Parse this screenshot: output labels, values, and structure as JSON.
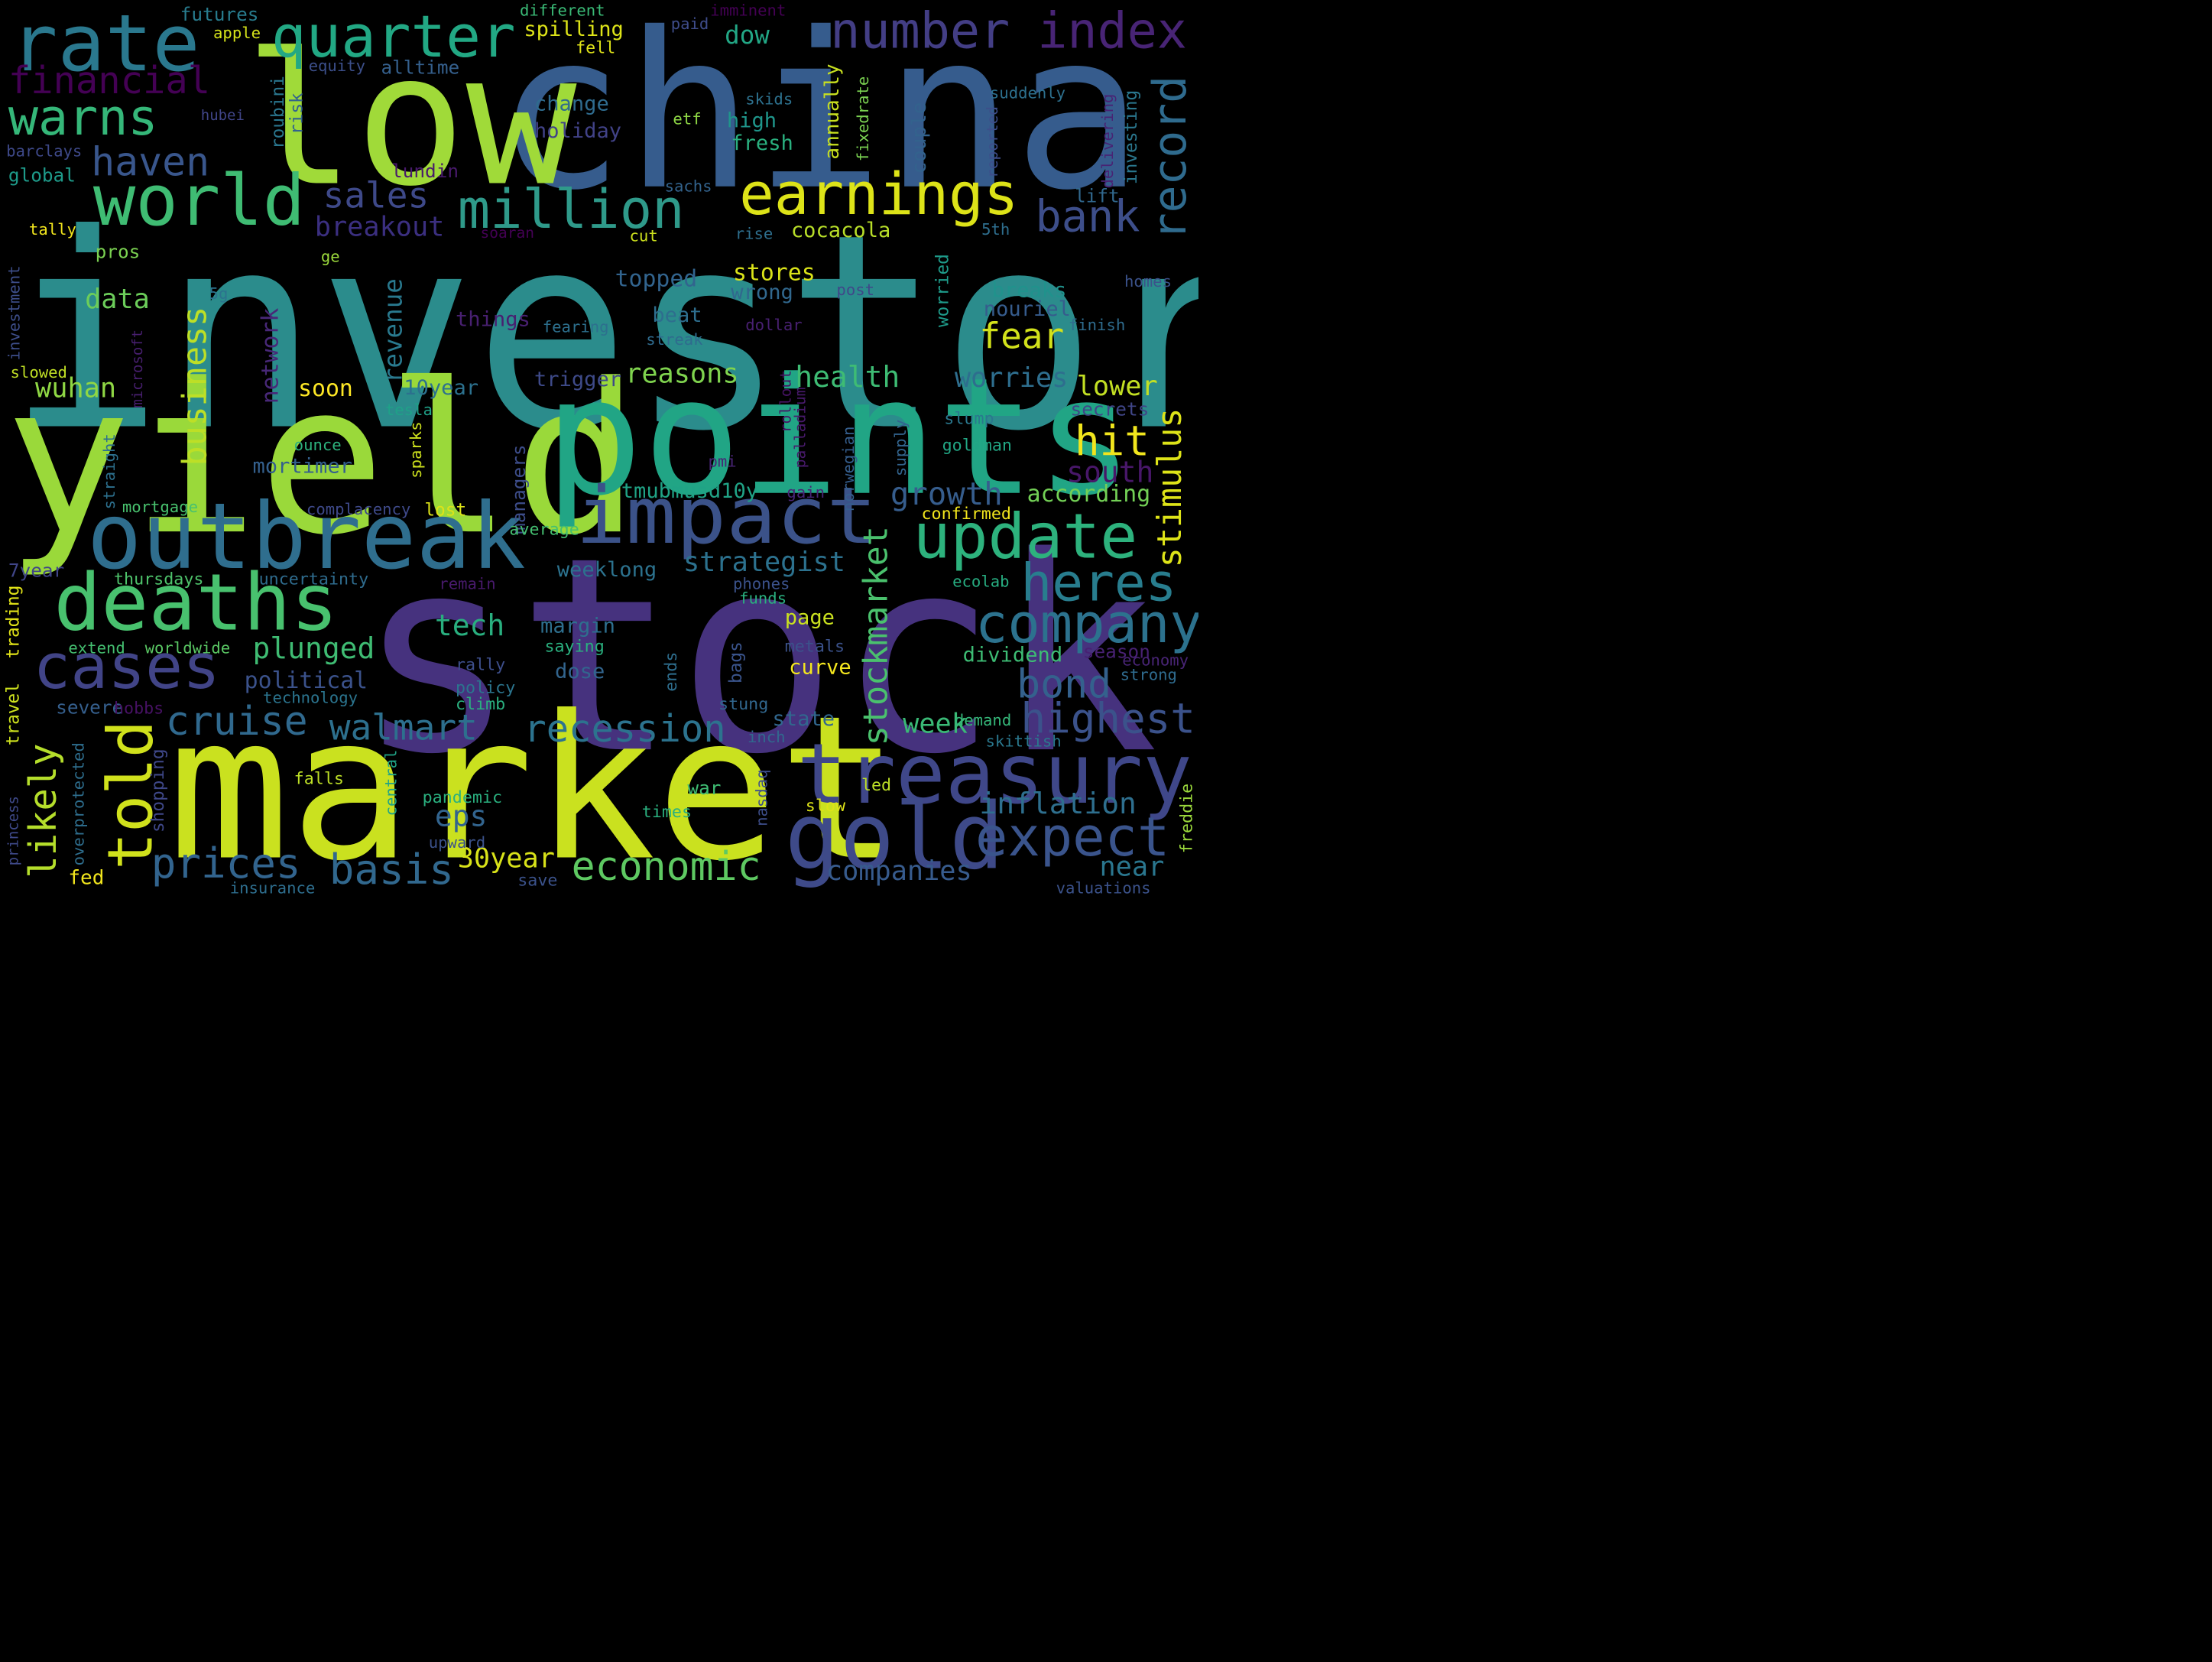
{
  "words": [
    {
      "text": "investors",
      "color": "#2b8c8c"
    },
    {
      "text": "stock",
      "color": "#46327e"
    },
    {
      "text": "china",
      "color": "#365c8d"
    },
    {
      "text": "market",
      "color": "#cae11f"
    },
    {
      "text": "yield",
      "color": "#9ad93a"
    },
    {
      "text": "points",
      "color": "#21a585"
    },
    {
      "text": "low",
      "color": "#a0da39"
    },
    {
      "text": "outbreak",
      "color": "#2f6e8e"
    },
    {
      "text": "impact",
      "color": "#3b5289"
    },
    {
      "text": "treasury",
      "color": "#3f4789"
    },
    {
      "text": "gold",
      "color": "#3e4a89"
    },
    {
      "text": "deaths",
      "color": "#48c16e"
    },
    {
      "text": "rate",
      "color": "#2a788e"
    },
    {
      "text": "world",
      "color": "#3fbc73"
    },
    {
      "text": "quarter",
      "color": "#22a884"
    },
    {
      "text": "update",
      "color": "#2db27d"
    },
    {
      "text": "cases",
      "color": "#414487"
    },
    {
      "text": "told",
      "color": "#d0e11c"
    },
    {
      "text": "earnings",
      "color": "#dde318"
    },
    {
      "text": "million",
      "color": "#2f9a8a"
    },
    {
      "text": "company",
      "color": "#2c728e"
    },
    {
      "text": "expect",
      "color": "#3a548c"
    },
    {
      "text": "number",
      "color": "#433e85"
    },
    {
      "text": "index",
      "color": "#482475"
    },
    {
      "text": "warns",
      "color": "#35b779"
    },
    {
      "text": "financial",
      "color": "#440154"
    },
    {
      "text": "haven",
      "color": "#39568c"
    },
    {
      "text": "record",
      "color": "#2f6b8e"
    },
    {
      "text": "heres",
      "color": "#287d8e"
    },
    {
      "text": "economic",
      "color": "#5ec962"
    },
    {
      "text": "prices",
      "color": "#32648e"
    },
    {
      "text": "basis",
      "color": "#31688e"
    },
    {
      "text": "recession",
      "color": "#2c738e"
    },
    {
      "text": "cruise",
      "color": "#30698e"
    },
    {
      "text": "walmart",
      "color": "#2d708e"
    },
    {
      "text": "highest",
      "color": "#3b528b"
    },
    {
      "text": "bond",
      "color": "#34618d"
    },
    {
      "text": "stimulus",
      "color": "#dde318"
    },
    {
      "text": "stockmarket",
      "color": "#4ac16d"
    },
    {
      "text": "bank",
      "color": "#3d4e8a"
    },
    {
      "text": "sales",
      "color": "#3e4989"
    },
    {
      "text": "likely",
      "color": "#b5de2b"
    },
    {
      "text": "business",
      "color": "#bddf26"
    },
    {
      "text": "fear",
      "color": "#d2e21b"
    },
    {
      "text": "hit",
      "color": "#f1e51d"
    },
    {
      "text": "breakout",
      "color": "#3b2f80"
    },
    {
      "text": "revenue",
      "color": "#29798e"
    },
    {
      "text": "network",
      "color": "#482878"
    },
    {
      "text": "growth",
      "color": "#365d8d"
    },
    {
      "text": "strategist",
      "color": "#2c718e"
    },
    {
      "text": "plunged",
      "color": "#3fbc73"
    },
    {
      "text": "inflation",
      "color": "#2e6f8e"
    },
    {
      "text": "companies",
      "color": "#375b8d"
    },
    {
      "text": "health",
      "color": "#3ebc74"
    },
    {
      "text": "worries",
      "color": "#2e6e8e"
    },
    {
      "text": "lower",
      "color": "#c2df23"
    },
    {
      "text": "south",
      "color": "#481769"
    },
    {
      "text": "wuhan",
      "color": "#8fd744"
    },
    {
      "text": "data",
      "color": "#6ccd5a"
    },
    {
      "text": "reasons",
      "color": "#7fd34e"
    },
    {
      "text": "tech",
      "color": "#29af7f"
    },
    {
      "text": "political",
      "color": "#3b528b"
    },
    {
      "text": "eps",
      "color": "#32648e"
    },
    {
      "text": "30year",
      "color": "#d8e219"
    },
    {
      "text": "near",
      "color": "#2a768e"
    },
    {
      "text": "week",
      "color": "#3aba76"
    },
    {
      "text": "state",
      "color": "#31678e"
    },
    {
      "text": "dividend",
      "color": "#3dbc74"
    },
    {
      "text": "according",
      "color": "#73d056"
    },
    {
      "text": "mortimer",
      "color": "#34608d"
    },
    {
      "text": "tmubmusd10y",
      "color": "#20a386"
    },
    {
      "text": "weeklong",
      "color": "#2c728e"
    },
    {
      "text": "cocacola",
      "color": "#b8de29"
    },
    {
      "text": "stores",
      "color": "#dae319"
    },
    {
      "text": "wrong",
      "color": "#31688e"
    },
    {
      "text": "topped",
      "color": "#32648e"
    },
    {
      "text": "beat",
      "color": "#2e6e8e"
    },
    {
      "text": "soon",
      "color": "#fde725"
    },
    {
      "text": "10year",
      "color": "#2c718e"
    },
    {
      "text": "trigger",
      "color": "#3e4a89"
    },
    {
      "text": "breaks",
      "color": "#20928c"
    },
    {
      "text": "nouriel",
      "color": "#365c8d"
    },
    {
      "text": "secrets",
      "color": "#404688"
    },
    {
      "text": "managers",
      "color": "#3d4d8a"
    },
    {
      "text": "margin",
      "color": "#2e6f8e"
    },
    {
      "text": "page",
      "color": "#cae11f"
    },
    {
      "text": "curve",
      "color": "#f4e61e"
    },
    {
      "text": "dose",
      "color": "#32658e"
    },
    {
      "text": "saying",
      "color": "#2ab07f"
    },
    {
      "text": "season",
      "color": "#482173"
    },
    {
      "text": "severe",
      "color": "#355f8d"
    },
    {
      "text": "technology",
      "color": "#2b748e"
    },
    {
      "text": "extend",
      "color": "#44bf70"
    },
    {
      "text": "worldwide",
      "color": "#5ac864"
    },
    {
      "text": "thursdays",
      "color": "#4ec36b"
    },
    {
      "text": "uncertainty",
      "color": "#2f6c8e"
    },
    {
      "text": "7year",
      "color": "#404588"
    },
    {
      "text": "change",
      "color": "#2f6b8e"
    },
    {
      "text": "holiday",
      "color": "#414287"
    },
    {
      "text": "high",
      "color": "#1f968b"
    },
    {
      "text": "fresh",
      "color": "#2ab07f"
    },
    {
      "text": "dow",
      "color": "#22a785"
    },
    {
      "text": "spilling",
      "color": "#dde318"
    },
    {
      "text": "fell",
      "color": "#dfe318"
    },
    {
      "text": "alltime",
      "color": "#35608d"
    },
    {
      "text": "equity",
      "color": "#3c4f8a"
    },
    {
      "text": "futures",
      "color": "#287c8e"
    },
    {
      "text": "apple",
      "color": "#d5e21a"
    },
    {
      "text": "different",
      "color": "#3aba76"
    },
    {
      "text": "paid",
      "color": "#3e4c8a"
    },
    {
      "text": "imminent",
      "color": "#440154"
    },
    {
      "text": "roubini",
      "color": "#2a768e"
    },
    {
      "text": "risk",
      "color": "#33638d"
    },
    {
      "text": "lundin",
      "color": "#481a6c"
    },
    {
      "text": "annually",
      "color": "#c8e020"
    },
    {
      "text": "fixedrate",
      "color": "#7ad151"
    },
    {
      "text": "couple",
      "color": "#33628d"
    },
    {
      "text": "reported",
      "color": "#3d4e8a"
    },
    {
      "text": "delivering",
      "color": "#482374"
    },
    {
      "text": "investing",
      "color": "#2a778e"
    },
    {
      "text": "suddenly",
      "color": "#2d708e"
    },
    {
      "text": "skids",
      "color": "#2d718e"
    },
    {
      "text": "etf",
      "color": "#8ed645"
    },
    {
      "text": "sachs",
      "color": "#33638d"
    },
    {
      "text": "lift",
      "color": "#31688e"
    },
    {
      "text": "5th",
      "color": "#2e6e8e"
    },
    {
      "text": "rise",
      "color": "#2e6f8e"
    },
    {
      "text": "cut",
      "color": "#cde11d"
    },
    {
      "text": "soaran",
      "color": "#440154"
    },
    {
      "text": "pros",
      "color": "#7ad151"
    },
    {
      "text": "tally",
      "color": "#f1e51d"
    },
    {
      "text": "ge",
      "color": "#9bd93c"
    },
    {
      "text": "investment",
      "color": "#3d4e8a"
    },
    {
      "text": "5g",
      "color": "#2c738e"
    },
    {
      "text": "microsoft",
      "color": "#481f70"
    },
    {
      "text": "slowed",
      "color": "#c0df25"
    },
    {
      "text": "straight",
      "color": "#2d708e"
    },
    {
      "text": "mortgage",
      "color": "#48c16e"
    },
    {
      "text": "things",
      "color": "#482071"
    },
    {
      "text": "fearing",
      "color": "#2d708e"
    },
    {
      "text": "streak",
      "color": "#2f6b8e"
    },
    {
      "text": "post",
      "color": "#3f4889"
    },
    {
      "text": "dollar",
      "color": "#482071"
    },
    {
      "text": "worried",
      "color": "#1e9b8a"
    },
    {
      "text": "finish",
      "color": "#2f6c8e"
    },
    {
      "text": "homes",
      "color": "#3b528b"
    },
    {
      "text": "ounce",
      "color": "#2db27d"
    },
    {
      "text": "tesla",
      "color": "#1fa188"
    },
    {
      "text": "sparks",
      "color": "#cde11d"
    },
    {
      "text": "rollout",
      "color": "#471365"
    },
    {
      "text": "palladium",
      "color": "#481a6c"
    },
    {
      "text": "norwegian",
      "color": "#355e8d"
    },
    {
      "text": "supply",
      "color": "#32648e"
    },
    {
      "text": "pmi",
      "color": "#482475"
    },
    {
      "text": "gain",
      "color": "#482576"
    },
    {
      "text": "goldman",
      "color": "#22a785"
    },
    {
      "text": "slump",
      "color": "#2a788e"
    },
    {
      "text": "complacency",
      "color": "#3e4989"
    },
    {
      "text": "lost",
      "color": "#dde318"
    },
    {
      "text": "confirmed",
      "color": "#f1e51d"
    },
    {
      "text": "average",
      "color": "#44bf70"
    },
    {
      "text": "remain",
      "color": "#481a6c"
    },
    {
      "text": "phones",
      "color": "#3b528b"
    },
    {
      "text": "funds",
      "color": "#2ab07f"
    },
    {
      "text": "ecolab",
      "color": "#27ad81"
    },
    {
      "text": "hobbs",
      "color": "#471164"
    },
    {
      "text": "travel",
      "color": "#cde11d"
    },
    {
      "text": "trading",
      "color": "#e2e418"
    },
    {
      "text": "overprotected",
      "color": "#2e6e8e"
    },
    {
      "text": "shopping",
      "color": "#3f4889"
    },
    {
      "text": "central",
      "color": "#20a386"
    },
    {
      "text": "falls",
      "color": "#bddf26"
    },
    {
      "text": "rally",
      "color": "#3d4e8a"
    },
    {
      "text": "policy",
      "color": "#2b758e"
    },
    {
      "text": "climb",
      "color": "#2ab07f"
    },
    {
      "text": "ends",
      "color": "#2e6e8e"
    },
    {
      "text": "bags",
      "color": "#3a548c"
    },
    {
      "text": "stung",
      "color": "#31678e"
    },
    {
      "text": "metals",
      "color": "#3b528b"
    },
    {
      "text": "economy",
      "color": "#482475"
    },
    {
      "text": "strong",
      "color": "#2f6b8e"
    },
    {
      "text": "demand",
      "color": "#35b779"
    },
    {
      "text": "skittish",
      "color": "#2a788e"
    },
    {
      "text": "inch",
      "color": "#31688e"
    },
    {
      "text": "nasdaq",
      "color": "#3d4e8a"
    },
    {
      "text": "war",
      "color": "#3fbc73"
    },
    {
      "text": "led",
      "color": "#bddf26"
    },
    {
      "text": "slow",
      "color": "#dde318"
    },
    {
      "text": "times",
      "color": "#2ab07f"
    },
    {
      "text": "pandemic",
      "color": "#2ab07f"
    },
    {
      "text": "upward",
      "color": "#3b528b"
    },
    {
      "text": "save",
      "color": "#3b528b"
    },
    {
      "text": "insurance",
      "color": "#2e6e8e"
    },
    {
      "text": "fed",
      "color": "#f1e51d"
    },
    {
      "text": "princess",
      "color": "#3e4989"
    },
    {
      "text": "valuations",
      "color": "#3b528b"
    },
    {
      "text": "freddie",
      "color": "#9bd93c"
    },
    {
      "text": "barclays",
      "color": "#3e4989"
    },
    {
      "text": "global",
      "color": "#1e9b8a"
    },
    {
      "text": "hubei",
      "color": "#404588"
    }
  ]
}
